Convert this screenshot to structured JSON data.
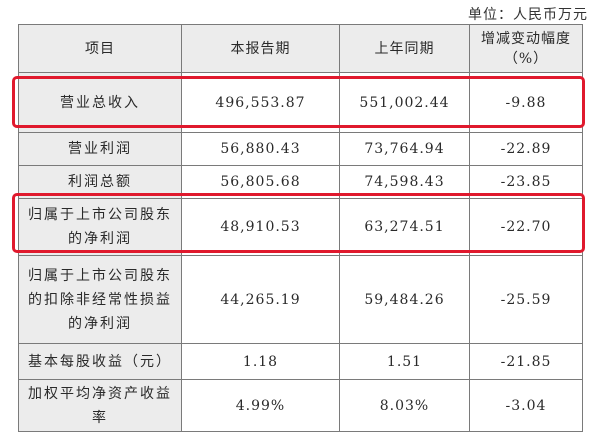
{
  "unit_label": "单位：人民币万元",
  "table": {
    "headers": [
      "项目",
      "本报告期",
      "上年同期",
      "增减变动幅度（%）"
    ],
    "rows": [
      {
        "item": "营业总收入",
        "current": "496,553.87",
        "prior": "551,002.44",
        "change": "-9.88"
      },
      {
        "item": "营业利润",
        "current": "56,880.43",
        "prior": "73,764.94",
        "change": "-22.89"
      },
      {
        "item": "利润总额",
        "current": "56,805.68",
        "prior": "74,598.43",
        "change": "-23.85"
      },
      {
        "item": "归属于上市公司股东的净利润",
        "current": "48,910.53",
        "prior": "63,274.51",
        "change": "-22.70"
      },
      {
        "item": "归属于上市公司股东的扣除非经常性损益的净利润",
        "current": "44,265.19",
        "prior": "59,484.26",
        "change": "-25.59"
      },
      {
        "item": "基本每股收益（元）",
        "current": "1.18",
        "prior": "1.51",
        "change": "-21.85"
      },
      {
        "item": "加权平均净资产收益率",
        "current": "4.99%",
        "prior": "8.03%",
        "change": "-3.04"
      }
    ]
  },
  "colors": {
    "highlight_box": "#e0192d",
    "header_bg": "#ececec",
    "border": "#7a7a7a"
  }
}
